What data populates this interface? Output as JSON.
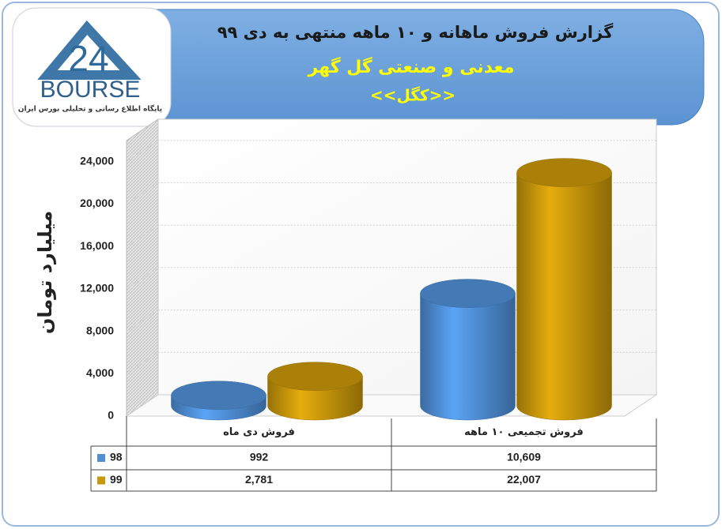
{
  "header": {
    "title": "گزارش فروش ماهانه و ۱۰ ماهه منتهی به دی ۹۹",
    "subtitle": "معدنی و صنعتی گل گهر",
    "ticker": "<<کگل>>"
  },
  "logo": {
    "number": "24",
    "brand": "BOURSE",
    "caption": "پایگاه اطلاع رسانی و تحلیلی بورس ایران"
  },
  "chart_data": {
    "type": "cylinder-bar",
    "y_label": "میلیارد تومان",
    "categories": [
      "فروش دی  ماه",
      "فروش تجمیعی ۱۰ ماهه"
    ],
    "series": [
      {
        "name": "98",
        "color": "#4f8fd6",
        "values": [
          992,
          10609
        ],
        "value_labels": [
          "992",
          "10,609"
        ]
      },
      {
        "name": "99",
        "color": "#c8960a",
        "values": [
          2781,
          22007
        ],
        "value_labels": [
          "2,781",
          "22,007"
        ]
      }
    ],
    "ylim": [
      0,
      26000
    ],
    "yticks": [
      0,
      {
        "value": 4000,
        "label": "4,000"
      },
      {
        "value": 8000,
        "label": "8,000"
      },
      {
        "value": 12000,
        "label": "12,000"
      },
      {
        "value": 16000,
        "label": "16,000"
      },
      {
        "value": 20000,
        "label": "20,000"
      },
      {
        "value": 24000,
        "label": "24,000"
      }
    ],
    "grid": true
  }
}
